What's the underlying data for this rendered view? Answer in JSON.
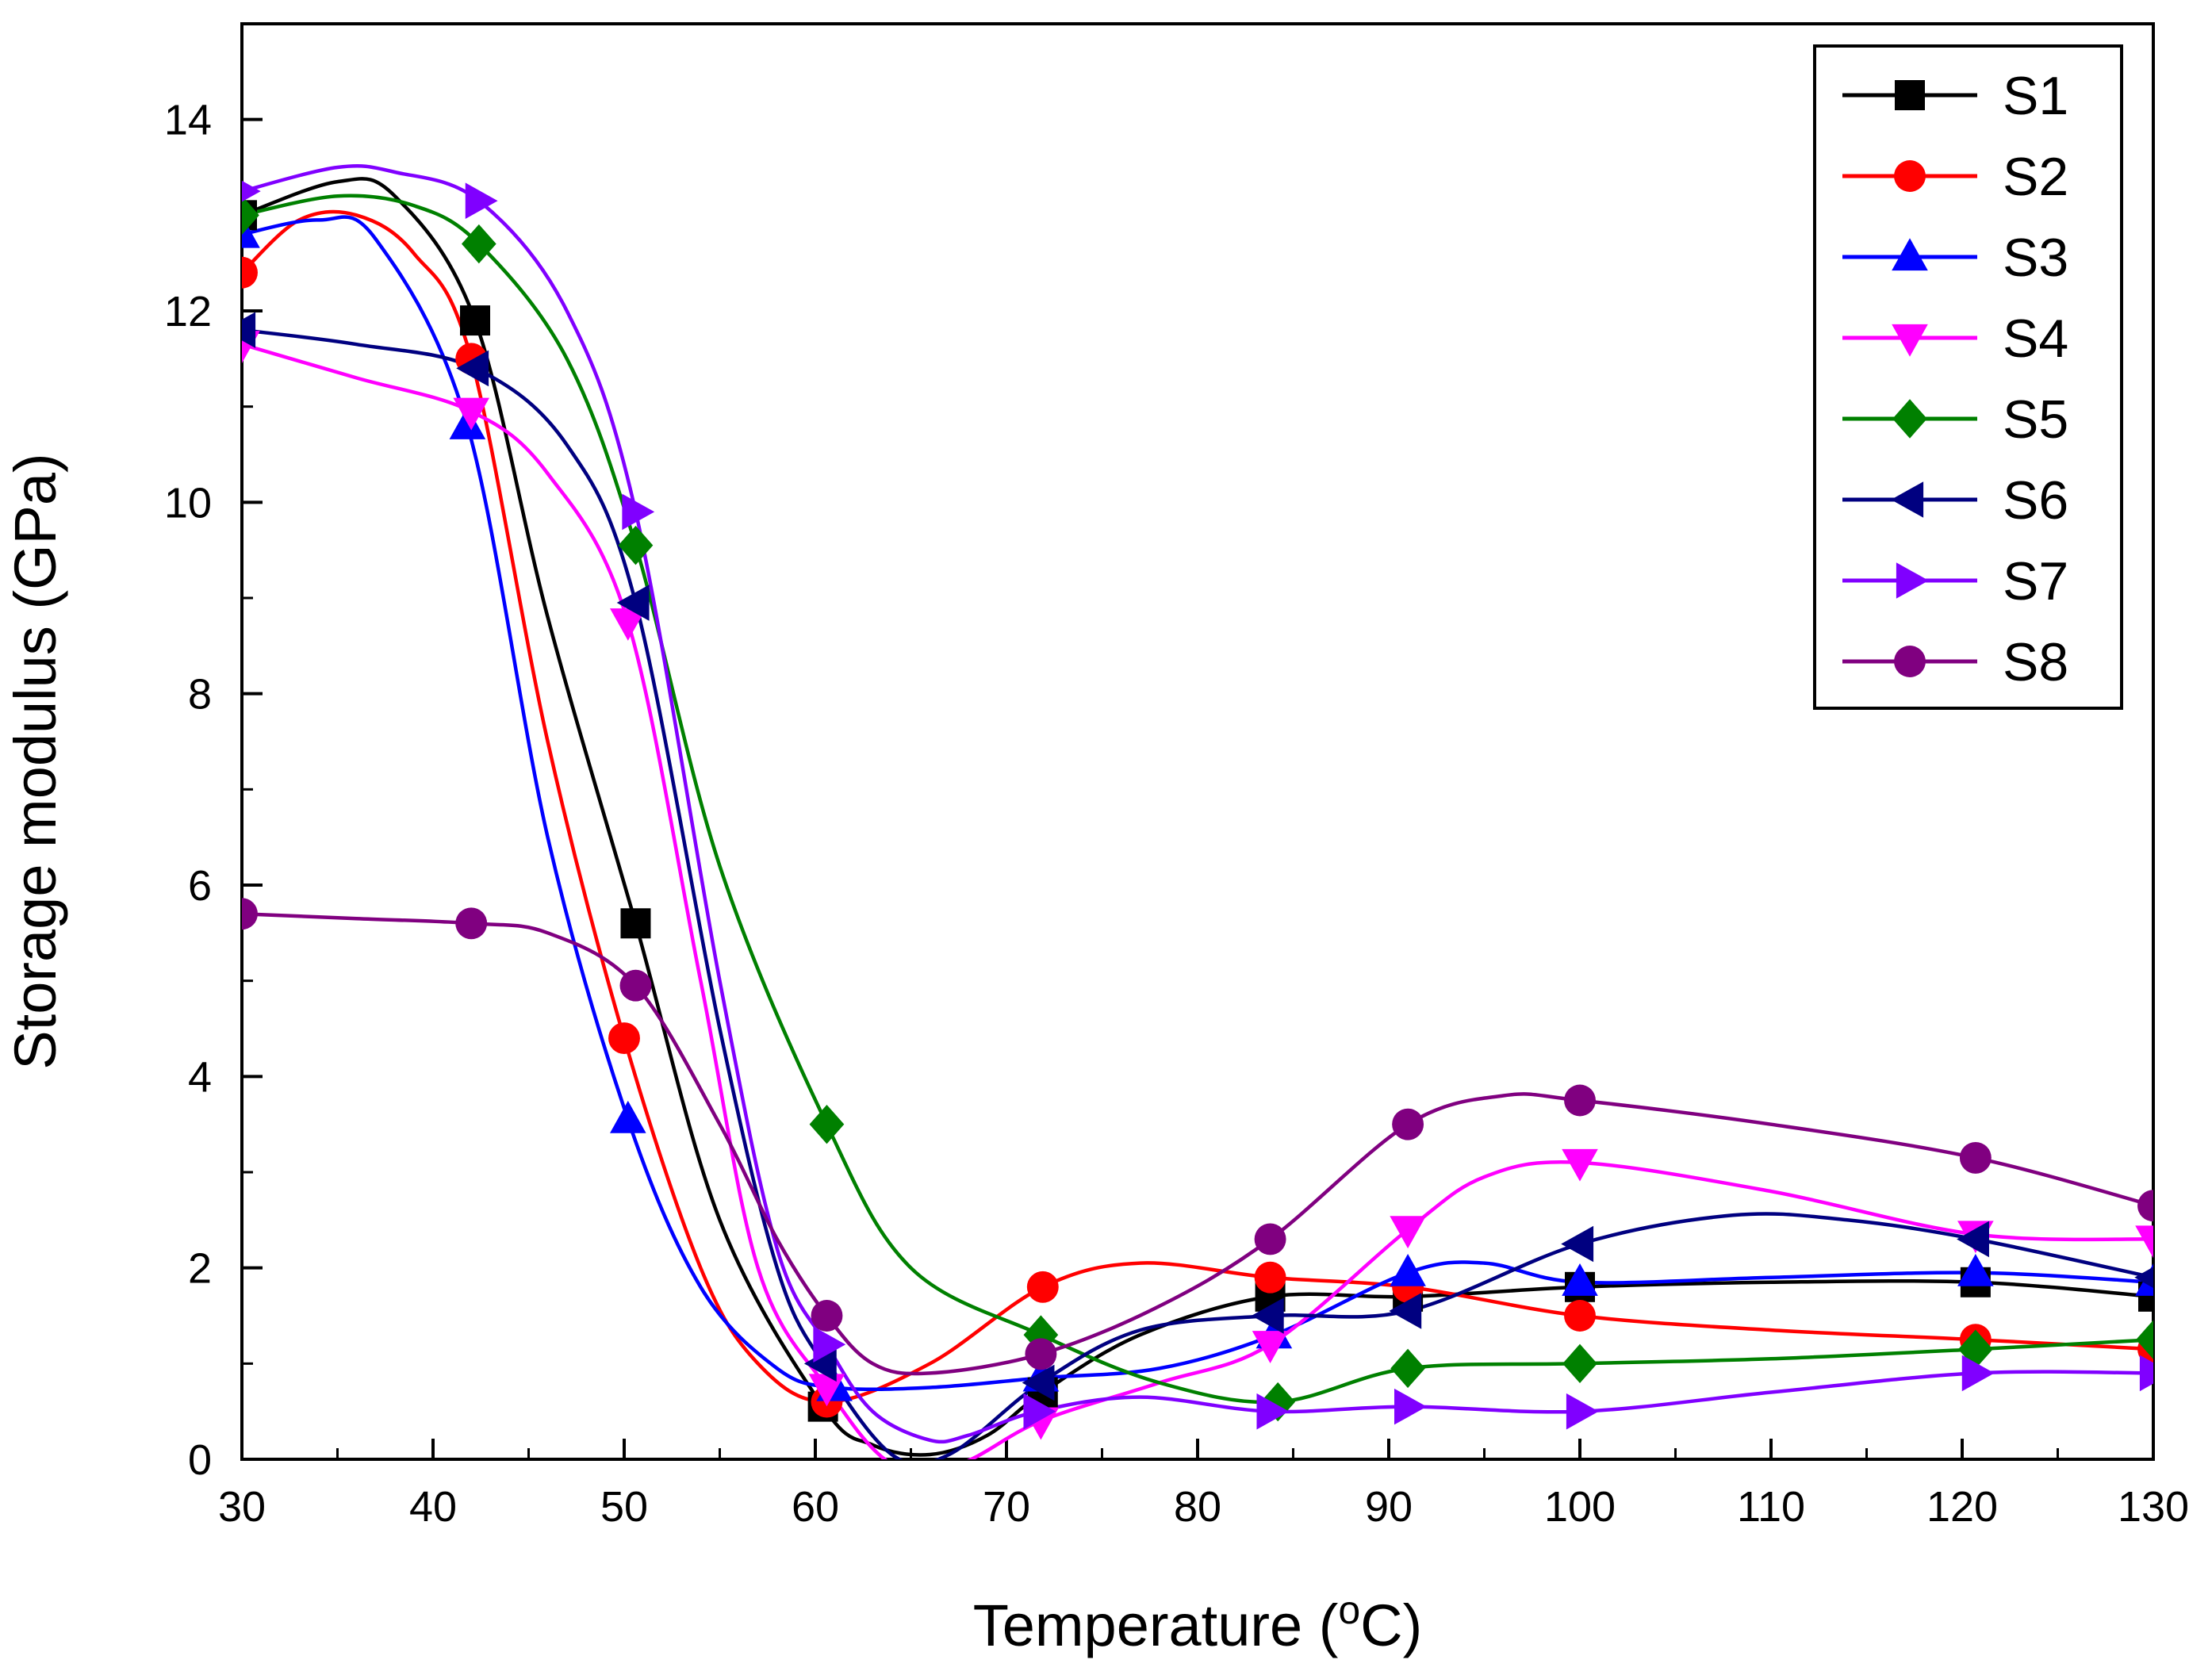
{
  "chart_data": {
    "type": "line",
    "xlabel": "Temperature (",
    "xlabel_sup": "o",
    "xlabel_unit": "C)",
    "ylabel": "Storage modulus (GPa)",
    "xlim": [
      30,
      130
    ],
    "ylim": [
      0,
      15
    ],
    "xticks": [
      "30",
      "40",
      "50",
      "60",
      "70",
      "80",
      "90",
      "100",
      "110",
      "120",
      "130"
    ],
    "yticks": [
      "0",
      "2",
      "4",
      "6",
      "8",
      "10",
      "12",
      "14"
    ],
    "grid": false,
    "legend_position": "top-right",
    "series": [
      {
        "name": "S1",
        "color": "#000000",
        "marker": "square",
        "points": [
          [
            30,
            13.0
          ],
          [
            42.2,
            11.9
          ],
          [
            50.6,
            5.6
          ],
          [
            60.4,
            0.55
          ],
          [
            71.9,
            0.7
          ],
          [
            83.8,
            1.7
          ],
          [
            91,
            1.7
          ],
          [
            100,
            1.8
          ],
          [
            120.7,
            1.85
          ],
          [
            130,
            1.7
          ]
        ],
        "curve": [
          [
            30,
            13.0
          ],
          [
            35,
            13.35
          ],
          [
            38,
            13.2
          ],
          [
            42.2,
            11.9
          ],
          [
            46,
            8.8
          ],
          [
            50.6,
            5.6
          ],
          [
            55,
            2.5
          ],
          [
            60.4,
            0.55
          ],
          [
            63,
            0.15
          ],
          [
            66,
            0.05
          ],
          [
            69,
            0.25
          ],
          [
            71.9,
            0.7
          ],
          [
            77,
            1.3
          ],
          [
            83.8,
            1.7
          ],
          [
            91,
            1.7
          ],
          [
            100,
            1.8
          ],
          [
            110,
            1.85
          ],
          [
            120.7,
            1.85
          ],
          [
            130,
            1.7
          ]
        ]
      },
      {
        "name": "S2",
        "color": "#ff0000",
        "marker": "circle",
        "points": [
          [
            30,
            12.4
          ],
          [
            42,
            11.5
          ],
          [
            50,
            4.4
          ],
          [
            60.6,
            0.6
          ],
          [
            71.9,
            1.8
          ],
          [
            83.8,
            1.9
          ],
          [
            91,
            1.8
          ],
          [
            100,
            1.5
          ],
          [
            120.7,
            1.25
          ],
          [
            130,
            1.15
          ]
        ],
        "curve": [
          [
            30,
            12.4
          ],
          [
            33,
            12.95
          ],
          [
            36,
            13.0
          ],
          [
            39,
            12.6
          ],
          [
            42,
            11.5
          ],
          [
            46,
            7.5
          ],
          [
            50,
            4.4
          ],
          [
            54,
            2.0
          ],
          [
            57,
            1.0
          ],
          [
            60.6,
            0.6
          ],
          [
            66,
            1.0
          ],
          [
            71.9,
            1.8
          ],
          [
            77,
            2.05
          ],
          [
            83.8,
            1.9
          ],
          [
            91,
            1.8
          ],
          [
            100,
            1.5
          ],
          [
            110,
            1.35
          ],
          [
            120.7,
            1.25
          ],
          [
            130,
            1.15
          ]
        ]
      },
      {
        "name": "S3",
        "color": "#0000ff",
        "marker": "triangle-up",
        "points": [
          [
            30,
            12.8
          ],
          [
            41.8,
            10.8
          ],
          [
            50.2,
            3.55
          ],
          [
            61,
            0.75
          ],
          [
            71.8,
            0.85
          ],
          [
            84,
            1.3
          ],
          [
            91,
            1.95
          ],
          [
            100,
            1.85
          ],
          [
            120.7,
            1.95
          ],
          [
            130,
            1.85
          ]
        ],
        "curve": [
          [
            30,
            12.8
          ],
          [
            34,
            12.95
          ],
          [
            37,
            12.75
          ],
          [
            41.8,
            10.8
          ],
          [
            46,
            6.5
          ],
          [
            50.2,
            3.55
          ],
          [
            54,
            1.8
          ],
          [
            58,
            0.95
          ],
          [
            61,
            0.75
          ],
          [
            66,
            0.75
          ],
          [
            71.8,
            0.85
          ],
          [
            78,
            0.95
          ],
          [
            84,
            1.3
          ],
          [
            91,
            1.95
          ],
          [
            95,
            2.05
          ],
          [
            100,
            1.85
          ],
          [
            110,
            1.9
          ],
          [
            120.7,
            1.95
          ],
          [
            130,
            1.85
          ]
        ]
      },
      {
        "name": "S4",
        "color": "#ff00ff",
        "marker": "triangle-down",
        "points": [
          [
            30,
            11.65
          ],
          [
            42,
            10.95
          ],
          [
            50.2,
            8.75
          ],
          [
            60.6,
            0.75
          ],
          [
            71.8,
            0.4
          ],
          [
            83.8,
            1.2
          ],
          [
            91,
            2.4
          ],
          [
            100,
            3.1
          ],
          [
            120.7,
            2.35
          ],
          [
            130,
            2.3
          ]
        ],
        "curve": [
          [
            30,
            11.65
          ],
          [
            36,
            11.3
          ],
          [
            42,
            10.95
          ],
          [
            46,
            10.3
          ],
          [
            50.2,
            8.75
          ],
          [
            54,
            5.0
          ],
          [
            57,
            2.0
          ],
          [
            60.6,
            0.75
          ],
          [
            64,
            -0.05
          ],
          [
            67.5,
            -0.05
          ],
          [
            71.8,
            0.4
          ],
          [
            78,
            0.8
          ],
          [
            83.8,
            1.2
          ],
          [
            91,
            2.4
          ],
          [
            95,
            2.95
          ],
          [
            100,
            3.1
          ],
          [
            110,
            2.8
          ],
          [
            120.7,
            2.35
          ],
          [
            130,
            2.3
          ]
        ]
      },
      {
        "name": "S5",
        "color": "#008000",
        "marker": "diamond",
        "points": [
          [
            30,
            13.0
          ],
          [
            42.4,
            12.7
          ],
          [
            50.6,
            9.55
          ],
          [
            60.6,
            3.5
          ],
          [
            71.8,
            1.3
          ],
          [
            84.2,
            0.6
          ],
          [
            91,
            0.95
          ],
          [
            100,
            1.0
          ],
          [
            120.7,
            1.15
          ],
          [
            130,
            1.25
          ]
        ],
        "curve": [
          [
            30,
            13.0
          ],
          [
            35,
            13.2
          ],
          [
            39,
            13.1
          ],
          [
            42.4,
            12.7
          ],
          [
            47,
            11.5
          ],
          [
            50.6,
            9.55
          ],
          [
            55,
            6.2
          ],
          [
            60.6,
            3.5
          ],
          [
            65,
            2.0
          ],
          [
            71.8,
            1.3
          ],
          [
            78,
            0.8
          ],
          [
            84.2,
            0.6
          ],
          [
            91,
            0.95
          ],
          [
            100,
            1.0
          ],
          [
            110,
            1.05
          ],
          [
            120.7,
            1.15
          ],
          [
            130,
            1.25
          ]
        ]
      },
      {
        "name": "S6",
        "color": "#000080",
        "marker": "triangle-left",
        "points": [
          [
            30,
            11.8
          ],
          [
            42.2,
            11.4
          ],
          [
            50.6,
            8.95
          ],
          [
            60.4,
            1.0
          ],
          [
            71.8,
            0.8
          ],
          [
            83.8,
            1.5
          ],
          [
            91,
            1.55
          ],
          [
            100,
            2.25
          ],
          [
            120.7,
            2.3
          ],
          [
            130,
            1.9
          ]
        ],
        "curve": [
          [
            30,
            11.8
          ],
          [
            36,
            11.65
          ],
          [
            42.2,
            11.4
          ],
          [
            47,
            10.6
          ],
          [
            50.6,
            8.95
          ],
          [
            55,
            4.5
          ],
          [
            58,
            2.0
          ],
          [
            60.4,
            1.0
          ],
          [
            64,
            0.05
          ],
          [
            67,
            0.05
          ],
          [
            71.8,
            0.8
          ],
          [
            77,
            1.35
          ],
          [
            83.8,
            1.5
          ],
          [
            91,
            1.55
          ],
          [
            100,
            2.25
          ],
          [
            108,
            2.55
          ],
          [
            114,
            2.5
          ],
          [
            120.7,
            2.3
          ],
          [
            130,
            1.9
          ]
        ]
      },
      {
        "name": "S7",
        "color": "#8000ff",
        "marker": "triangle-right",
        "points": [
          [
            30,
            13.25
          ],
          [
            42.4,
            13.15
          ],
          [
            50.6,
            9.9
          ],
          [
            60.6,
            1.2
          ],
          [
            71.6,
            0.5
          ],
          [
            83.8,
            0.5
          ],
          [
            91,
            0.55
          ],
          [
            100,
            0.5
          ],
          [
            120.7,
            0.9
          ],
          [
            130,
            0.9
          ]
        ],
        "curve": [
          [
            30,
            13.25
          ],
          [
            35,
            13.5
          ],
          [
            38,
            13.45
          ],
          [
            42.4,
            13.15
          ],
          [
            47,
            12.0
          ],
          [
            50.6,
            9.9
          ],
          [
            55,
            5.0
          ],
          [
            58,
            2.2
          ],
          [
            60.6,
            1.2
          ],
          [
            63,
            0.5
          ],
          [
            66,
            0.2
          ],
          [
            68,
            0.25
          ],
          [
            71.6,
            0.5
          ],
          [
            77,
            0.65
          ],
          [
            83.8,
            0.5
          ],
          [
            91,
            0.55
          ],
          [
            100,
            0.5
          ],
          [
            110,
            0.7
          ],
          [
            120.7,
            0.9
          ],
          [
            130,
            0.9
          ]
        ]
      },
      {
        "name": "S8",
        "color": "#800080",
        "marker": "circle",
        "points": [
          [
            30,
            5.7
          ],
          [
            42,
            5.6
          ],
          [
            50.6,
            4.95
          ],
          [
            60.6,
            1.5
          ],
          [
            71.8,
            1.1
          ],
          [
            83.8,
            2.3
          ],
          [
            91,
            3.5
          ],
          [
            100,
            3.75
          ],
          [
            120.7,
            3.15
          ],
          [
            130,
            2.65
          ]
        ],
        "curve": [
          [
            30,
            5.7
          ],
          [
            36,
            5.65
          ],
          [
            42,
            5.6
          ],
          [
            46,
            5.5
          ],
          [
            50.6,
            4.95
          ],
          [
            55,
            3.5
          ],
          [
            58,
            2.3
          ],
          [
            60.6,
            1.5
          ],
          [
            63,
            1.0
          ],
          [
            66,
            0.9
          ],
          [
            71.8,
            1.1
          ],
          [
            78,
            1.6
          ],
          [
            83.8,
            2.3
          ],
          [
            91,
            3.5
          ],
          [
            96,
            3.8
          ],
          [
            100,
            3.75
          ],
          [
            110,
            3.5
          ],
          [
            120.7,
            3.15
          ],
          [
            130,
            2.65
          ]
        ]
      }
    ]
  }
}
